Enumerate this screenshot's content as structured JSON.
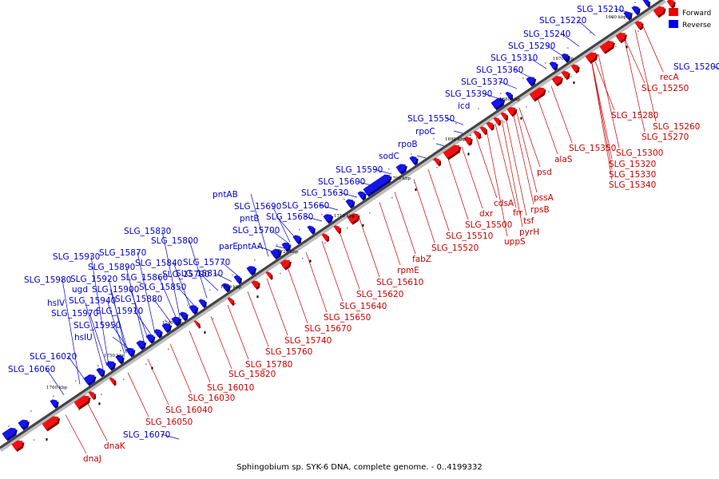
{
  "caption": "Sphingobium sp. SYK-6 DNA, complete genome. - 0..4199332",
  "legend": [
    {
      "label": "Forward",
      "color": "#ee0000"
    },
    {
      "label": "Reverse",
      "color": "#0000ee"
    }
  ],
  "tick_labels": [
    "1660 kbp",
    "1670 kbp",
    "1680 kbp",
    "1690 kbp",
    "1700 kbp",
    "1710 kbp",
    "1720 kbp",
    "1730 kbp",
    "1740 kbp",
    "1750 kbp",
    "1760 kbp"
  ],
  "reverse_labels": [
    "SLG_15210",
    "SLG_15220",
    "SLG_15240",
    "SLG_15290",
    "SLG_15310",
    "SLG_15360",
    "SLG_15370",
    "SLG_15390",
    "icd",
    "SLG_15550",
    "rpoC",
    "rpoB",
    "sodC",
    "SLG_15590",
    "SLG_15600",
    "SLG_15630",
    "pntAB",
    "SLG_15690",
    "SLG_15660",
    "pntB",
    "SLG_15680",
    "SLG_15700",
    "parE",
    "pntAA",
    "SLG_15830",
    "SLG_15800",
    "SLG_15870",
    "SLG_15770",
    "SLG_15930",
    "SLG_15840",
    "SLG_15890",
    "SLG_15790",
    "SLG_15810",
    "SLG_15980",
    "SLG_15920",
    "SLG_15860",
    "ugd",
    "SLG_15900",
    "SLG_15850",
    "hslV",
    "SLG_15940",
    "SLG_15880",
    "SLG_15970",
    "SLG_15910",
    "SLG_15950",
    "hslU",
    "SLG_16020",
    "SLG_16060",
    "SLG_15200",
    "SLG_16070"
  ],
  "forward_labels": [
    "recA",
    "SLG_15250",
    "SLG_15280",
    "SLG_15260",
    "SLG_15270",
    "SLG_15350",
    "SLG_15300",
    "SLG_15320",
    "SLG_15330",
    "SLG_15340",
    "alaS",
    "psd",
    "pssA",
    "rpsB",
    "cdsA",
    "tsf",
    "frr",
    "pyrH",
    "dxr",
    "uppS",
    "SLG_15500",
    "SLG_15510",
    "SLG_15520",
    "fabZ",
    "rpmE",
    "SLG_15610",
    "SLG_15620",
    "SLG_15640",
    "SLG_15650",
    "SLG_15670",
    "SLG_15740",
    "SLG_15760",
    "SLG_15780",
    "SLG_15820",
    "SLG_16010",
    "SLG_16030",
    "SLG_16040",
    "SLG_16050",
    "dnaK",
    "dnaJ"
  ]
}
